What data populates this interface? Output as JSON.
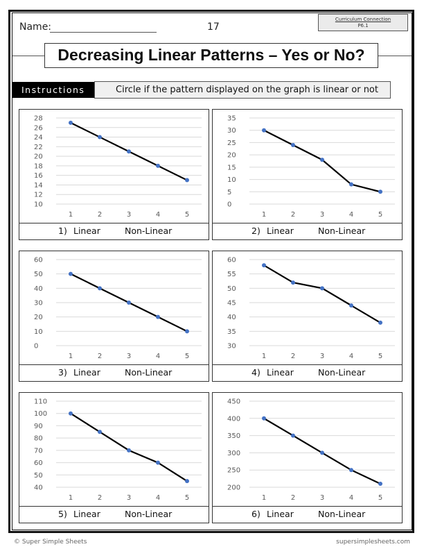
{
  "header": {
    "name_label": "Name:",
    "page_number": "17",
    "curriculum_title": "Curriculum Connection",
    "curriculum_code": "P6.1"
  },
  "title": "Decreasing Linear Patterns – Yes or No?",
  "instructions": {
    "label": "Instructions",
    "text": "Circle if the pattern displayed on the graph is linear or not"
  },
  "answer_options": {
    "linear": "Linear",
    "non_linear": "Non-Linear"
  },
  "footer": {
    "left": "© Super Simple Sheets",
    "right": "supersimplesheets.com"
  },
  "colors": {
    "line": "#000000",
    "marker": "#4472c4",
    "grid": "#d9d9d9",
    "tick_text": "#595959"
  },
  "chart_data": [
    {
      "type": "line",
      "number": "1)",
      "x": [
        1,
        2,
        3,
        4,
        5
      ],
      "values": [
        27,
        24,
        21,
        18,
        15
      ],
      "yticks": [
        10,
        12,
        14,
        16,
        18,
        20,
        22,
        24,
        26,
        28
      ],
      "ylim": [
        10,
        28
      ],
      "grid": true
    },
    {
      "type": "line",
      "number": "2)",
      "x": [
        1,
        2,
        3,
        4,
        5
      ],
      "values": [
        30,
        24,
        18,
        8,
        5
      ],
      "yticks": [
        0,
        5,
        10,
        15,
        20,
        25,
        30,
        35
      ],
      "ylim": [
        0,
        35
      ],
      "grid": true
    },
    {
      "type": "line",
      "number": "3)",
      "x": [
        1,
        2,
        3,
        4,
        5
      ],
      "values": [
        50,
        40,
        30,
        20,
        10
      ],
      "yticks": [
        0,
        10,
        20,
        30,
        40,
        50,
        60
      ],
      "ylim": [
        0,
        60
      ],
      "grid": true
    },
    {
      "type": "line",
      "number": "4)",
      "x": [
        1,
        2,
        3,
        4,
        5
      ],
      "values": [
        58,
        52,
        50,
        44,
        38
      ],
      "yticks": [
        30,
        35,
        40,
        45,
        50,
        55,
        60
      ],
      "ylim": [
        30,
        60
      ],
      "grid": true
    },
    {
      "type": "line",
      "number": "5)",
      "x": [
        1,
        2,
        3,
        4,
        5
      ],
      "values": [
        100,
        85,
        70,
        60,
        45
      ],
      "yticks": [
        40,
        50,
        60,
        70,
        80,
        90,
        100,
        110
      ],
      "ylim": [
        40,
        110
      ],
      "grid": true
    },
    {
      "type": "line",
      "number": "6)",
      "x": [
        1,
        2,
        3,
        4,
        5
      ],
      "values": [
        400,
        350,
        300,
        250,
        210
      ],
      "yticks": [
        200,
        250,
        300,
        350,
        400,
        450
      ],
      "ylim": [
        200,
        450
      ],
      "grid": true
    }
  ]
}
